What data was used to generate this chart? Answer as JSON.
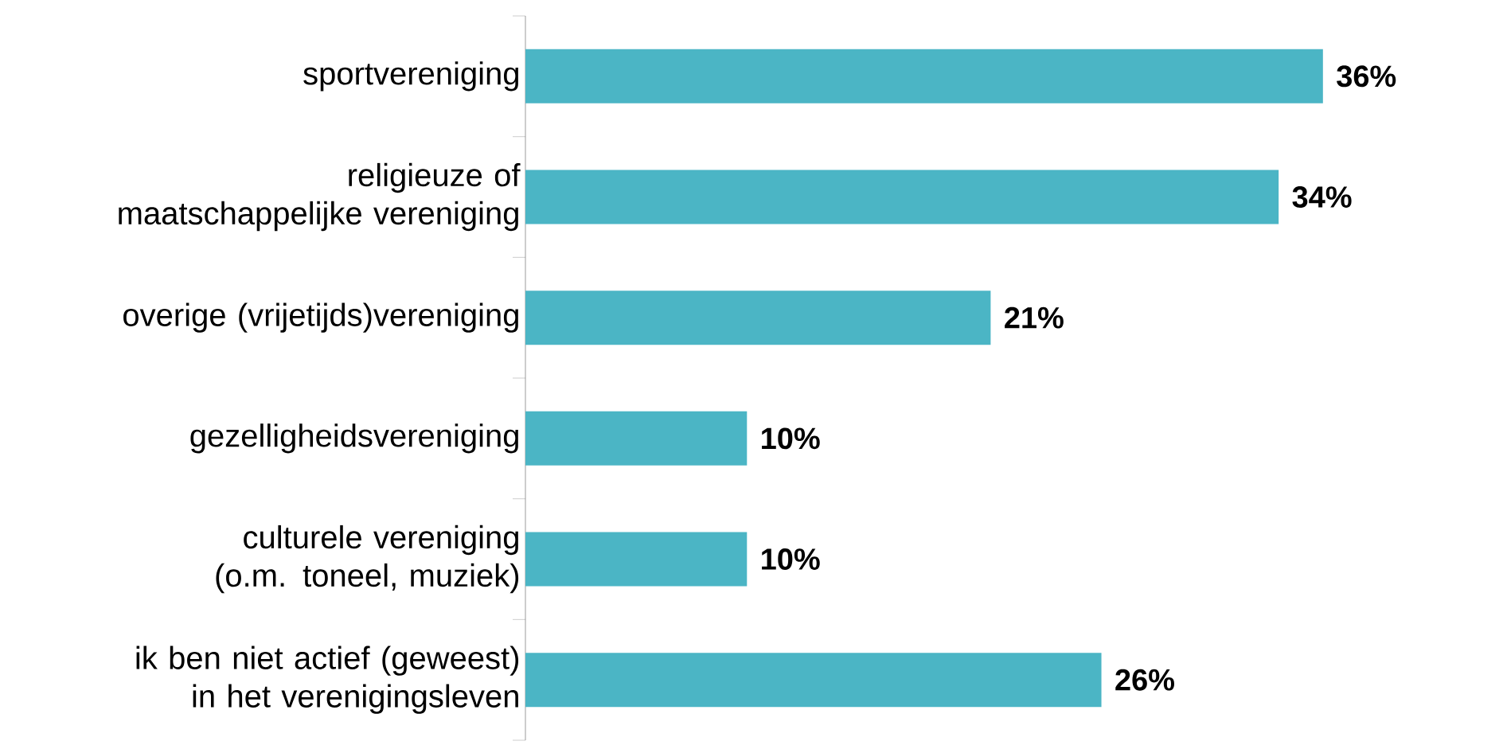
{
  "chart_data": {
    "type": "bar",
    "orientation": "horizontal",
    "categories": [
      "sportvereniging",
      "religieuze of maatschappelijke vereniging",
      "overige (vrijetijds)vereniging",
      "gezelligheidsvereniging",
      "culturele vereniging (o.m. toneel, muziek)",
      "ik ben niet actief (geweest) in het verenigingsleven"
    ],
    "values": [
      36,
      34,
      21,
      10,
      10,
      26
    ],
    "value_labels": [
      "36%",
      "34%",
      "21%",
      "10%",
      "10%",
      "26%"
    ],
    "color": "#4bb5c5",
    "tick_labels": "y"
  }
}
